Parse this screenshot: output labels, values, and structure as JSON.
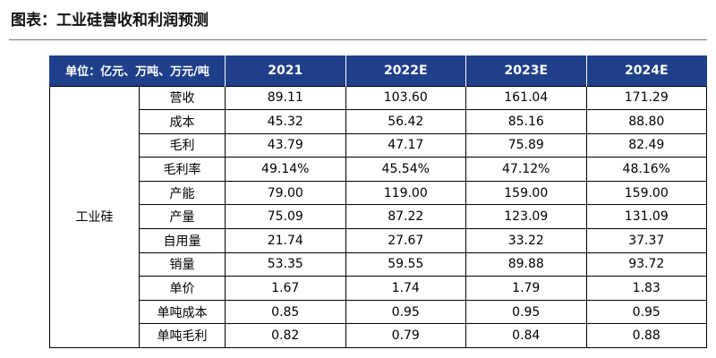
{
  "title": "图表：工业硅营收和利润预测",
  "table": {
    "header": {
      "unit_label": "单位：亿元、万吨、万元/吨",
      "years": [
        "2021",
        "2022E",
        "2023E",
        "2024E"
      ]
    },
    "group_label": "工业硅",
    "rows": [
      {
        "label": "营收",
        "values": [
          "89.11",
          "103.60",
          "161.04",
          "171.29"
        ]
      },
      {
        "label": "成本",
        "values": [
          "45.32",
          "56.42",
          "85.16",
          "88.80"
        ]
      },
      {
        "label": "毛利",
        "values": [
          "43.79",
          "47.17",
          "75.89",
          "82.49"
        ]
      },
      {
        "label": "毛利率",
        "values": [
          "49.14%",
          "45.54%",
          "47.12%",
          "48.16%"
        ]
      },
      {
        "label": "产能",
        "values": [
          "79.00",
          "119.00",
          "159.00",
          "159.00"
        ]
      },
      {
        "label": "产量",
        "values": [
          "75.09",
          "87.22",
          "123.09",
          "131.09"
        ]
      },
      {
        "label": "自用量",
        "values": [
          "21.74",
          "27.67",
          "33.22",
          "37.37"
        ]
      },
      {
        "label": "销量",
        "values": [
          "53.35",
          "59.55",
          "89.88",
          "93.72"
        ]
      },
      {
        "label": "单价",
        "values": [
          "1.67",
          "1.74",
          "1.79",
          "1.83"
        ]
      },
      {
        "label": "单吨成本",
        "values": [
          "0.85",
          "0.95",
          "0.95",
          "0.95"
        ]
      },
      {
        "label": "单吨毛利",
        "values": [
          "0.82",
          "0.79",
          "0.84",
          "0.88"
        ]
      }
    ]
  },
  "colors": {
    "header_bg": "#1f3f8a",
    "header_text": "#ffffff",
    "border": "#000000"
  }
}
